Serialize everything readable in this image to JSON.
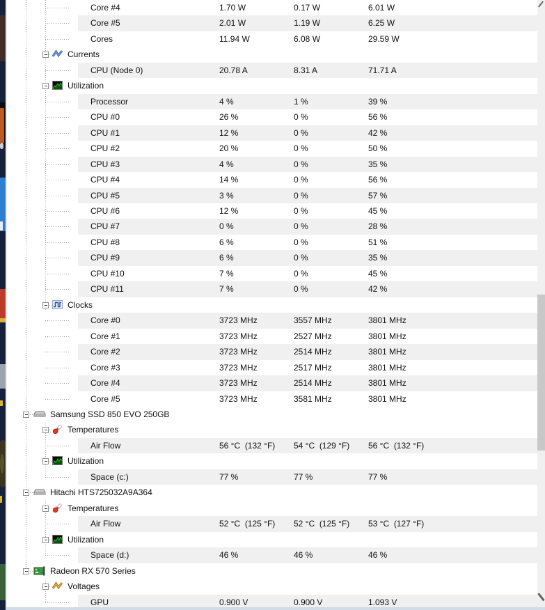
{
  "app": {
    "description": "hardware sensor monitor tree (value / min / max columns)"
  },
  "colors": {
    "stripe": "#f0f0f0",
    "tree_guide": "#a3a3a3",
    "scroll_track": "#f0f0f0",
    "scroll_thumb": "#c8c8c8",
    "currents_icon": "#4a7cc9",
    "voltages_icon": "#e0a028",
    "utilization_icon": "#21c321",
    "clocks_icon": "#2d4d9e",
    "temperatures_icon": "#e03c28"
  },
  "tree": {
    "rows": [
      {
        "kind": "sensor",
        "label": "Core #4",
        "value": "1.70 W",
        "min": "0.17 W",
        "max": "6.01 W",
        "striped": false
      },
      {
        "kind": "sensor",
        "label": "Core #5",
        "value": "2.01 W",
        "min": "1.19 W",
        "max": "6.25 W",
        "striped": true
      },
      {
        "kind": "sensor",
        "label": "Cores",
        "value": "11.94 W",
        "min": "6.08 W",
        "max": "29.59 W",
        "striped": false
      },
      {
        "kind": "group",
        "icon": "currents",
        "label": "Currents",
        "striped": false
      },
      {
        "kind": "sensor",
        "label": "CPU (Node 0)",
        "value": "20.78 A",
        "min": "8.31 A",
        "max": "71.71 A",
        "striped": true
      },
      {
        "kind": "group",
        "icon": "utilization",
        "label": "Utilization",
        "striped": false
      },
      {
        "kind": "sensor",
        "label": "Processor",
        "value": "4 %",
        "min": "1 %",
        "max": "39 %",
        "striped": true
      },
      {
        "kind": "sensor",
        "label": "CPU #0",
        "value": "26 %",
        "min": "0 %",
        "max": "56 %",
        "striped": false
      },
      {
        "kind": "sensor",
        "label": "CPU #1",
        "value": "12 %",
        "min": "0 %",
        "max": "42 %",
        "striped": true
      },
      {
        "kind": "sensor",
        "label": "CPU #2",
        "value": "20 %",
        "min": "0 %",
        "max": "50 %",
        "striped": false
      },
      {
        "kind": "sensor",
        "label": "CPU #3",
        "value": "4 %",
        "min": "0 %",
        "max": "35 %",
        "striped": true
      },
      {
        "kind": "sensor",
        "label": "CPU #4",
        "value": "14 %",
        "min": "0 %",
        "max": "56 %",
        "striped": false
      },
      {
        "kind": "sensor",
        "label": "CPU #5",
        "value": "3 %",
        "min": "0 %",
        "max": "57 %",
        "striped": true
      },
      {
        "kind": "sensor",
        "label": "CPU #6",
        "value": "12 %",
        "min": "0 %",
        "max": "45 %",
        "striped": false
      },
      {
        "kind": "sensor",
        "label": "CPU #7",
        "value": "0 %",
        "min": "0 %",
        "max": "28 %",
        "striped": true
      },
      {
        "kind": "sensor",
        "label": "CPU #8",
        "value": "6 %",
        "min": "0 %",
        "max": "51 %",
        "striped": false
      },
      {
        "kind": "sensor",
        "label": "CPU #9",
        "value": "6 %",
        "min": "0 %",
        "max": "35 %",
        "striped": true
      },
      {
        "kind": "sensor",
        "label": "CPU #10",
        "value": "7 %",
        "min": "0 %",
        "max": "45 %",
        "striped": false
      },
      {
        "kind": "sensor",
        "label": "CPU #11",
        "value": "7 %",
        "min": "0 %",
        "max": "42 %",
        "striped": true
      },
      {
        "kind": "group",
        "icon": "clocks",
        "label": "Clocks",
        "striped": false
      },
      {
        "kind": "sensor",
        "label": "Core #0",
        "value": "3723 MHz",
        "min": "3557 MHz",
        "max": "3801 MHz",
        "striped": true
      },
      {
        "kind": "sensor",
        "label": "Core #1",
        "value": "3723 MHz",
        "min": "2527 MHz",
        "max": "3801 MHz",
        "striped": false
      },
      {
        "kind": "sensor",
        "label": "Core #2",
        "value": "3723 MHz",
        "min": "2514 MHz",
        "max": "3801 MHz",
        "striped": true
      },
      {
        "kind": "sensor",
        "label": "Core #3",
        "value": "3723 MHz",
        "min": "2517 MHz",
        "max": "3801 MHz",
        "striped": false
      },
      {
        "kind": "sensor",
        "label": "Core #4",
        "value": "3723 MHz",
        "min": "2514 MHz",
        "max": "3801 MHz",
        "striped": true
      },
      {
        "kind": "sensor",
        "label": "Core #5",
        "value": "3723 MHz",
        "min": "3581 MHz",
        "max": "3801 MHz",
        "striped": false
      },
      {
        "kind": "device",
        "icon": "disk",
        "label": "Samsung SSD 850 EVO 250GB",
        "striped": false
      },
      {
        "kind": "group",
        "icon": "temperatures",
        "label": "Temperatures",
        "striped": false
      },
      {
        "kind": "sensor",
        "label": "Air Flow",
        "value": "56 °C  (132 °F)",
        "min": "54 °C  (129 °F)",
        "max": "56 °C  (132 °F)",
        "striped": true
      },
      {
        "kind": "group",
        "icon": "utilization",
        "label": "Utilization",
        "striped": false
      },
      {
        "kind": "sensor",
        "label": "Space (c:)",
        "value": "77 %",
        "min": "77 %",
        "max": "77 %",
        "striped": true
      },
      {
        "kind": "device",
        "icon": "disk",
        "label": "Hitachi HTS725032A9A364",
        "striped": false
      },
      {
        "kind": "group",
        "icon": "temperatures",
        "label": "Temperatures",
        "striped": false
      },
      {
        "kind": "sensor",
        "label": "Air Flow",
        "value": "52 °C  (125 °F)",
        "min": "52 °C  (125 °F)",
        "max": "53 °C  (127 °F)",
        "striped": true
      },
      {
        "kind": "group",
        "icon": "utilization",
        "label": "Utilization",
        "striped": false
      },
      {
        "kind": "sensor",
        "label": "Space (d:)",
        "value": "46 %",
        "min": "46 %",
        "max": "46 %",
        "striped": true
      },
      {
        "kind": "device",
        "icon": "gpu",
        "label": "Radeon RX 570 Series",
        "striped": false
      },
      {
        "kind": "group",
        "icon": "voltages",
        "label": "Voltages",
        "striped": false
      },
      {
        "kind": "sensor",
        "label": "GPU",
        "value": "0.900 V",
        "min": "0.900 V",
        "max": "1.093 V",
        "striped": true
      }
    ],
    "expander_glyph": "minus"
  }
}
